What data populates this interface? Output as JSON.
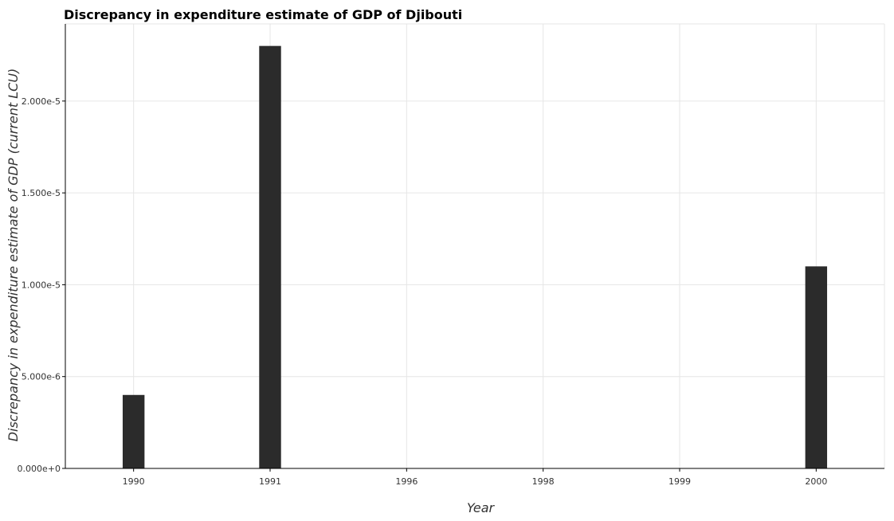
{
  "chart_data": {
    "type": "bar",
    "title": "Discrepancy in expenditure estimate of GDP of Djibouti",
    "xlabel": "Year",
    "ylabel": "Discrepancy in expenditure estimate of GDP (current LCU)",
    "categories": [
      "1990",
      "1991",
      "1996",
      "1998",
      "1999",
      "2000"
    ],
    "values": [
      4e-06,
      2.3e-05,
      0,
      0,
      0,
      1.1e-05
    ],
    "ylim": [
      0,
      2.42e-05
    ],
    "yticks": [
      0,
      5e-06,
      1e-05,
      1.5e-05,
      2e-05
    ],
    "ytick_labels": [
      "0.000e+0",
      "5.000e-6",
      "1.000e-5",
      "1.500e-5",
      "2.000e-5"
    ],
    "grid": true,
    "bar_color": "#2b2b2b"
  }
}
